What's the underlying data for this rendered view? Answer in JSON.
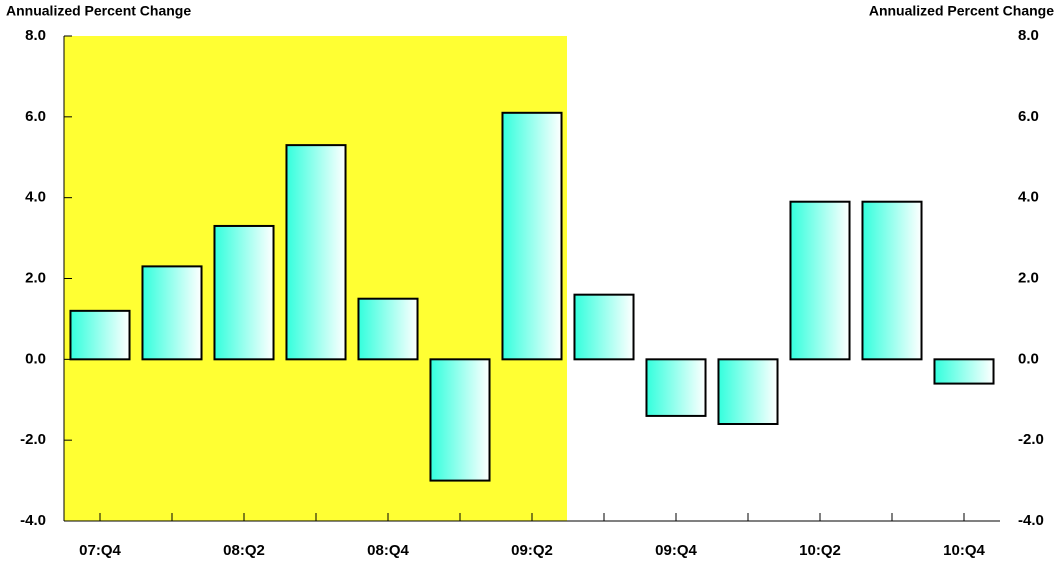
{
  "chart_data": {
    "type": "bar",
    "y_label": "Annualized Percent Change",
    "y2_label": "Annualized Percent Change",
    "categories": [
      "07:Q4",
      null,
      "08:Q2",
      null,
      "08:Q4",
      null,
      "09:Q2",
      null,
      "09:Q4",
      null,
      "10:Q2",
      null,
      "10:Q4"
    ],
    "values": [
      1.2,
      2.3,
      3.3,
      5.3,
      1.5,
      -3.0,
      6.1,
      1.6,
      -1.4,
      -1.6,
      3.9,
      3.9,
      -0.6
    ],
    "color": "#33ffdd",
    "ylim": [
      -4,
      8
    ],
    "yticks": [
      {
        "value": -4,
        "label": "-4.0"
      },
      {
        "value": -2,
        "label": "-2.0"
      },
      {
        "value": 0,
        "label": "0.0"
      },
      {
        "value": 2,
        "label": "2.0"
      },
      {
        "value": 4,
        "label": "4.0"
      },
      {
        "value": 6,
        "label": "6.0"
      },
      {
        "value": 8,
        "label": "8.0"
      }
    ],
    "y2lim": [
      -4,
      8
    ],
    "y2ticks": [
      {
        "value": -4,
        "label": "-4.0"
      },
      {
        "value": -2,
        "label": "-2.0"
      },
      {
        "value": 0,
        "label": "0.0"
      },
      {
        "value": 2,
        "label": "2.0"
      },
      {
        "value": 4,
        "label": "4.0"
      },
      {
        "value": 6,
        "label": "6.0"
      },
      {
        "value": 8,
        "label": "8.0"
      }
    ]
  }
}
